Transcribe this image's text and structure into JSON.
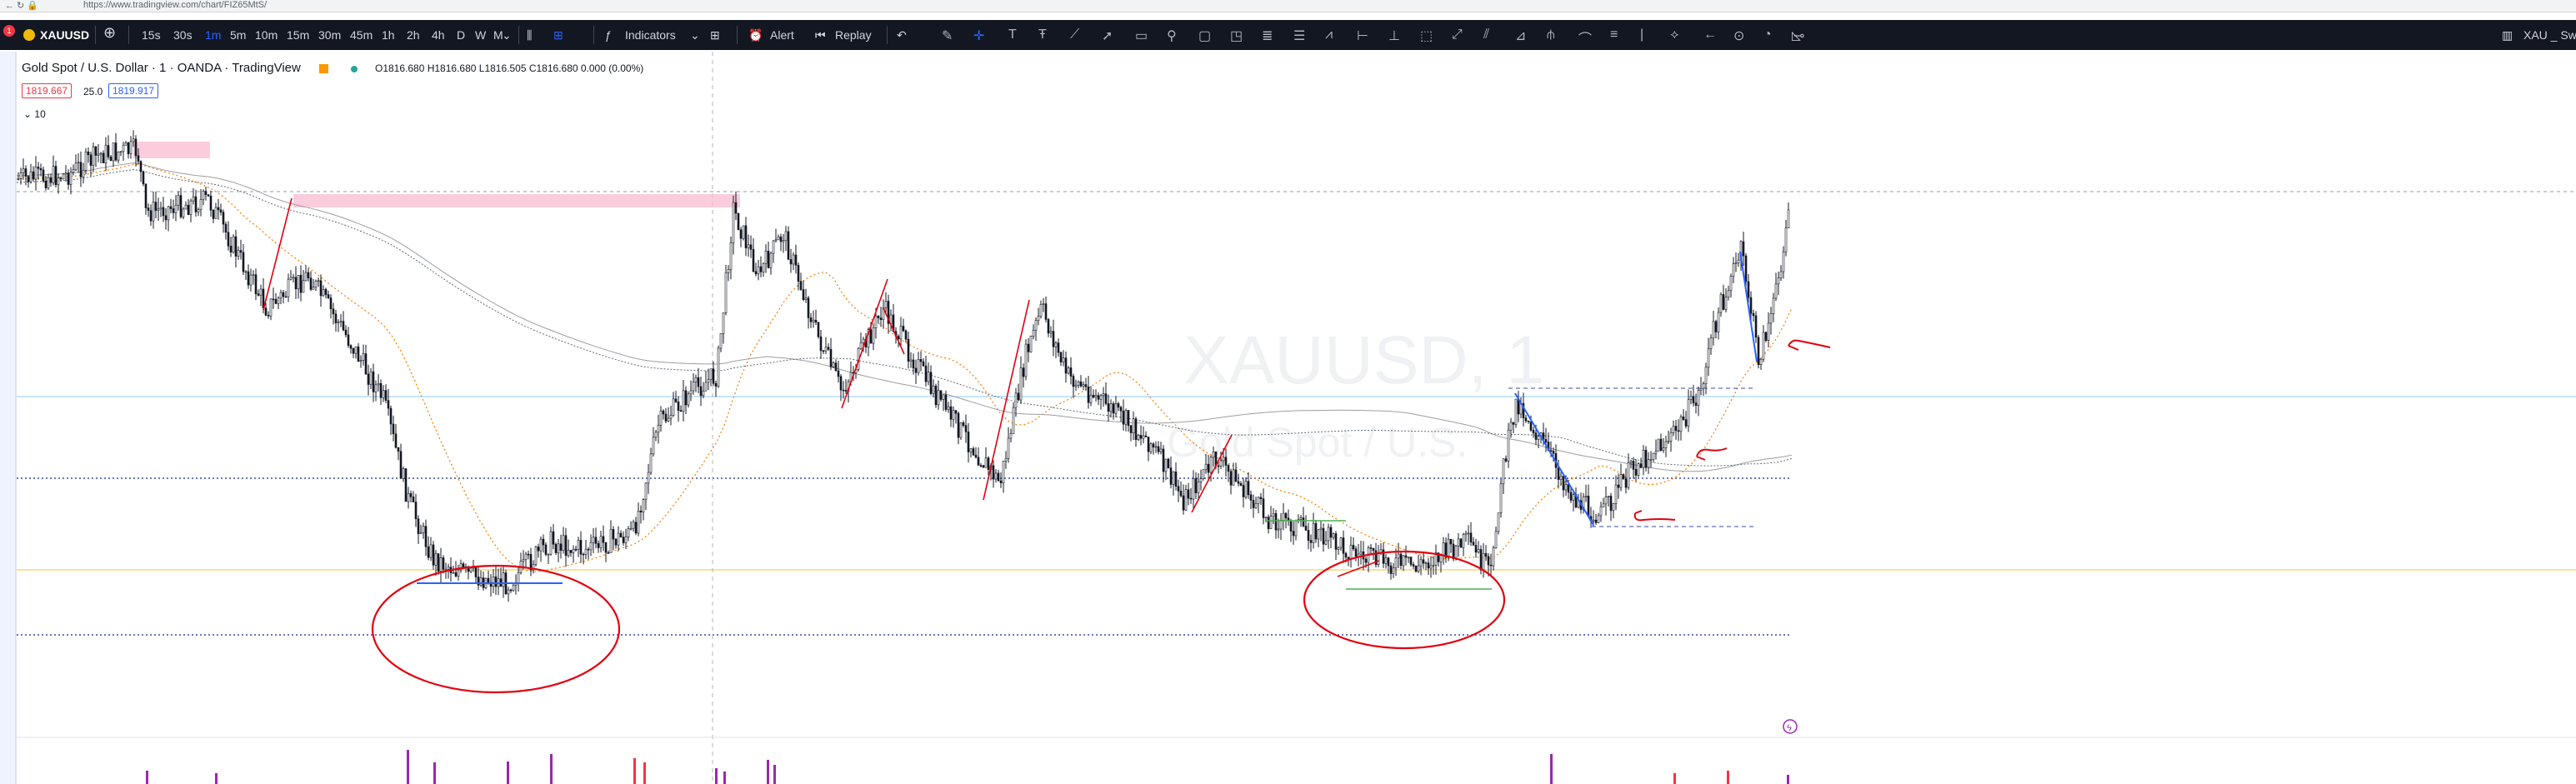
{
  "browser": {
    "url": "https://www.tradingview.com/chart/FIZ65MtS/"
  },
  "toolbar": {
    "symbol": "XAUUSD",
    "intervals": [
      "15s",
      "30s",
      "1m",
      "5m",
      "10m",
      "15m",
      "30m",
      "45m",
      "1h",
      "2h",
      "4h",
      "D",
      "W",
      "M"
    ],
    "active_interval": "1m",
    "indicators_label": "Indicators",
    "alert_label": "Alert",
    "replay_label": "Replay",
    "right_label": "XAU _ Sw"
  },
  "legend": {
    "title": "Gold Spot / U.S. Dollar · 1 · OANDA · TradingView",
    "ohlc": "O1816.680  H1816.680  L1816.505  C1816.680  0.000 (0.00%)",
    "bid": "1819.667",
    "spread": "25.0",
    "ask": "1819.917",
    "collapse_count": "10"
  },
  "watermark": {
    "symbol": "XAUUSD, 1",
    "description": "Gold Spot / U.S."
  },
  "colors": {
    "accent": "#2962ff",
    "up": "#26a69a",
    "down": "#ef5350",
    "annotation": "#e3000f",
    "volume": "#9c27b0",
    "toolbar": "#131722"
  }
}
